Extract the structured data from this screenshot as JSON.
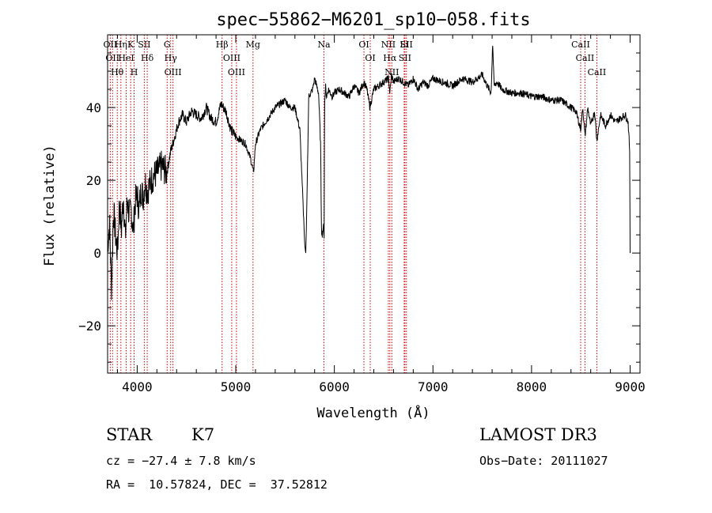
{
  "chart_data": {
    "type": "line",
    "title": "spec−55862−M6201_sp10−058.fits",
    "xlabel": "Wavelength (Å)",
    "ylabel": "Flux (relative)",
    "xlim": [
      3700,
      9100
    ],
    "ylim": [
      -33,
      60
    ],
    "x_ticks": [
      {
        "value": 4000,
        "label": "4000"
      },
      {
        "value": 5000,
        "label": "5000"
      },
      {
        "value": 6000,
        "label": "6000"
      },
      {
        "value": 7000,
        "label": "7000"
      },
      {
        "value": 8000,
        "label": "8000"
      },
      {
        "value": 9000,
        "label": "9000"
      }
    ],
    "y_ticks": [
      {
        "value": -20,
        "label": "−20"
      },
      {
        "value": 0,
        "label": "0"
      },
      {
        "value": 20,
        "label": "20"
      },
      {
        "value": 40,
        "label": "40"
      }
    ],
    "spectrum": {
      "x": [
        3700,
        3720,
        3740,
        3760,
        3780,
        3800,
        3820,
        3840,
        3860,
        3880,
        3900,
        3920,
        3940,
        3960,
        3980,
        4000,
        4020,
        4040,
        4060,
        4080,
        4100,
        4130,
        4160,
        4200,
        4250,
        4300,
        4340,
        4380,
        4420,
        4460,
        4500,
        4550,
        4600,
        4650,
        4700,
        4750,
        4800,
        4850,
        4900,
        4950,
        5000,
        5050,
        5100,
        5150,
        5180,
        5200,
        5250,
        5300,
        5350,
        5400,
        5450,
        5500,
        5550,
        5600,
        5650,
        5680,
        5700,
        5710,
        5720,
        5740,
        5780,
        5800,
        5840,
        5860,
        5870,
        5880,
        5890,
        5896,
        5900,
        5910,
        5920,
        5940,
        5980,
        6000,
        6050,
        6100,
        6150,
        6200,
        6250,
        6300,
        6330,
        6360,
        6400,
        6450,
        6500,
        6550,
        6563,
        6580,
        6600,
        6650,
        6700,
        6750,
        6800,
        6850,
        6900,
        6950,
        7000,
        7100,
        7200,
        7300,
        7400,
        7500,
        7550,
        7590,
        7605,
        7620,
        7650,
        7700,
        7800,
        7900,
        8000,
        8100,
        8200,
        8300,
        8400,
        8450,
        8498,
        8520,
        8542,
        8570,
        8600,
        8640,
        8662,
        8700,
        8750,
        8800,
        8850,
        8900,
        8950,
        8980,
        8995,
        9000
      ],
      "y": [
        2,
        8,
        -10,
        12,
        5,
        0,
        14,
        6,
        16,
        4,
        15,
        10,
        12,
        6,
        14,
        16,
        12,
        18,
        15,
        20,
        17,
        19,
        21,
        22,
        24,
        22,
        28,
        32,
        36,
        38,
        36,
        39,
        38,
        37,
        40,
        37,
        36,
        41,
        39,
        34,
        32,
        31,
        30,
        26,
        22,
        30,
        34,
        36,
        38,
        40,
        41,
        42,
        40,
        40,
        34,
        15,
        2,
        0,
        12,
        43,
        45,
        48,
        44,
        30,
        6,
        5,
        8,
        4,
        40,
        46,
        43,
        45,
        43,
        44,
        45,
        44,
        43,
        46,
        44,
        47,
        45,
        40,
        45,
        46,
        47,
        48,
        44,
        49,
        47,
        48,
        47,
        46,
        48,
        45,
        47,
        46,
        48,
        47,
        46,
        48,
        47,
        49,
        46,
        44,
        58,
        46,
        47,
        45,
        44,
        44,
        43,
        43,
        42,
        42,
        40,
        39,
        34,
        40,
        32,
        40,
        35,
        39,
        31,
        38,
        35,
        38,
        36,
        37,
        38,
        36,
        28,
        0
      ]
    },
    "lines": [
      {
        "wl": 3727,
        "label": "OII"
      },
      {
        "wl": 3750,
        "label": "OII"
      },
      {
        "wl": 3798,
        "label": "Hθ"
      },
      {
        "wl": 3835,
        "label": "Hη"
      },
      {
        "wl": 3889,
        "label": "HeI"
      },
      {
        "wl": 3934,
        "label": "K"
      },
      {
        "wl": 3969,
        "label": "H"
      },
      {
        "wl": 4072,
        "label": "SII"
      },
      {
        "wl": 4102,
        "label": "Hδ"
      },
      {
        "wl": 4304,
        "label": "G"
      },
      {
        "wl": 4340,
        "label": "Hγ"
      },
      {
        "wl": 4363,
        "label": "OIII"
      },
      {
        "wl": 4861,
        "label": "Hβ"
      },
      {
        "wl": 4959,
        "label": "OIII"
      },
      {
        "wl": 5007,
        "label": "OIII"
      },
      {
        "wl": 5175,
        "label": "Mg"
      },
      {
        "wl": 5894,
        "label": "Na"
      },
      {
        "wl": 6300,
        "label": "OI"
      },
      {
        "wl": 6364,
        "label": "OI"
      },
      {
        "wl": 6548,
        "label": "NII"
      },
      {
        "wl": 6563,
        "label": "Hα"
      },
      {
        "wl": 6583,
        "label": "NII"
      },
      {
        "wl": 6708,
        "label": "Li"
      },
      {
        "wl": 6716,
        "label": "SII"
      },
      {
        "wl": 6731,
        "label": "SII"
      },
      {
        "wl": 8498,
        "label": "CaII"
      },
      {
        "wl": 8542,
        "label": "CaII"
      },
      {
        "wl": 8662,
        "label": "CaII"
      }
    ],
    "colors": {
      "spectrum": "#000000",
      "line_markers": "#cc0000",
      "axes": "#000000"
    }
  },
  "info": {
    "class": "STAR",
    "subclass": "K7",
    "survey": "LAMOST DR3",
    "cz": "cz = −27.4 ± 7.8 km/s",
    "obs_date": "Obs−Date: 20111027",
    "coords": "RA =  10.57824, DEC =  37.52812"
  }
}
